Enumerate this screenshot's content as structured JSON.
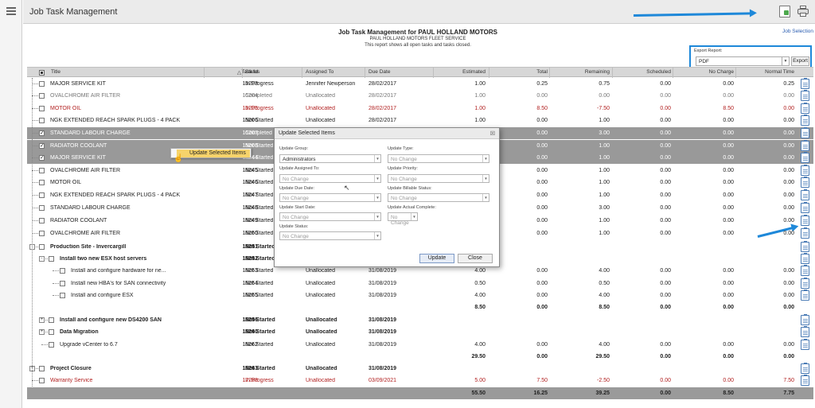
{
  "app": {
    "title": "Job Task Management",
    "job_selection": "Job Selection"
  },
  "report": {
    "title": "Job Task Management for PAUL HOLLAND MOTORS",
    "subtitle": "PAUL HOLLAND MOTORS FLEET SERVICE",
    "note": "This report shows all open tasks and tasks closed."
  },
  "export": {
    "label": "Export Report:",
    "format": "PDF",
    "button": "Export"
  },
  "columns": {
    "title": "Title",
    "task_id": "Task Id",
    "sort_indicator": "△",
    "status": "Status",
    "assigned_to": "Assigned To",
    "due_date": "Due Date",
    "estimated": "Estimated",
    "total": "Total",
    "remaining": "Remaining",
    "scheduled": "Scheduled",
    "no_charge": "No Charge",
    "normal_time": "Normal Time"
  },
  "rows": [
    {
      "title": "MAJOR SERVICE KIT",
      "task": "15203",
      "status": "In Progress",
      "assigned": "Jennifer Newperson",
      "due": "28/02/2017",
      "est": "1.00",
      "total": "0.25",
      "rem": "0.75",
      "sched": "0.00",
      "nc": "0.00",
      "nt": "0.25"
    },
    {
      "title": "OVALCHROME AIR FILTER",
      "task": "15204",
      "status": "Completed",
      "assigned": "Unallocated",
      "due": "28/02/2017",
      "est": "1.00",
      "total": "0.00",
      "rem": "0.00",
      "sched": "0.00",
      "nc": "0.00",
      "nt": "0.00"
    },
    {
      "title": "MOTOR OIL",
      "task": "15205",
      "status": "In Progress",
      "assigned": "Unallocated",
      "due": "28/02/2017",
      "est": "1.00",
      "total": "8.50",
      "rem": "-7.50",
      "sched": "0.00",
      "nc": "8.50",
      "nt": "0.00"
    },
    {
      "title": "NGK EXTENDED REACH SPARK PLUGS - 4 PACK",
      "task": "15206",
      "status": "Not Started",
      "assigned": "Unallocated",
      "due": "28/02/2017",
      "est": "1.00",
      "total": "0.00",
      "rem": "1.00",
      "sched": "0.00",
      "nc": "0.00",
      "nt": "0.00"
    },
    {
      "title": "STANDARD LABOUR CHARGE",
      "task": "15207",
      "status": "Completed",
      "assigned": "",
      "due": "",
      "est": "",
      "total": "0.00",
      "rem": "3.00",
      "sched": "0.00",
      "nc": "0.00",
      "nt": "0.00"
    },
    {
      "title": "RADIATOR COOLANT",
      "task": "15208",
      "status": "Not Started",
      "assigned": "",
      "due": "",
      "est": "",
      "total": "0.00",
      "rem": "1.00",
      "sched": "0.00",
      "nc": "0.00",
      "nt": "0.00"
    },
    {
      "title": "MAJOR SERVICE KIT",
      "task": "16244",
      "status": "Not Started",
      "assigned": "",
      "due": "",
      "est": "",
      "total": "0.00",
      "rem": "1.00",
      "sched": "0.00",
      "nc": "0.00",
      "nt": "0.00"
    },
    {
      "title": "OVALCHROME AIR FILTER",
      "task": "16245",
      "status": "Not Started",
      "assigned": "",
      "due": "",
      "est": "",
      "total": "0.00",
      "rem": "1.00",
      "sched": "0.00",
      "nc": "0.00",
      "nt": "0.00"
    },
    {
      "title": "MOTOR OIL",
      "task": "16246",
      "status": "Not Started",
      "assigned": "",
      "due": "",
      "est": "",
      "total": "0.00",
      "rem": "1.00",
      "sched": "0.00",
      "nc": "0.00",
      "nt": "0.00"
    },
    {
      "title": "NGK EXTENDED REACH SPARK PLUGS - 4 PACK",
      "task": "16247",
      "status": "Not Started",
      "assigned": "",
      "due": "",
      "est": "",
      "total": "0.00",
      "rem": "1.00",
      "sched": "0.00",
      "nc": "0.00",
      "nt": "0.00"
    },
    {
      "title": "STANDARD LABOUR CHARGE",
      "task": "16248",
      "status": "Not Started",
      "assigned": "",
      "due": "",
      "est": "",
      "total": "0.00",
      "rem": "3.00",
      "sched": "0.00",
      "nc": "0.00",
      "nt": "0.00"
    },
    {
      "title": "RADIATOR COOLANT",
      "task": "16249",
      "status": "Not Started",
      "assigned": "",
      "due": "",
      "est": "",
      "total": "0.00",
      "rem": "1.00",
      "sched": "0.00",
      "nc": "0.00",
      "nt": "0.00"
    },
    {
      "title": "OVALCHROME AIR FILTER",
      "task": "16250",
      "status": "Not Started",
      "assigned": "",
      "due": "",
      "est": "",
      "total": "0.00",
      "rem": "1.00",
      "sched": "0.00",
      "nc": "0.00",
      "nt": "0.00"
    },
    {
      "title": "Production Site - Invercargill",
      "task": "16251",
      "status": "Not Started",
      "assigned": "",
      "due": "",
      "est": "",
      "total": "",
      "rem": "",
      "sched": "",
      "nc": "",
      "nt": ""
    },
    {
      "title": "Install two new ESX host servers",
      "task": "16252",
      "status": "Not Started",
      "assigned": "",
      "due": "",
      "est": "",
      "total": "",
      "rem": "",
      "sched": "",
      "nc": "",
      "nt": ""
    },
    {
      "title": "Install and configure hardware for ne...",
      "task": "16253",
      "status": "Not Started",
      "assigned": "Unallocated",
      "due": "31/08/2019",
      "est": "4.00",
      "total": "0.00",
      "rem": "4.00",
      "sched": "0.00",
      "nc": "0.00",
      "nt": "0.00"
    },
    {
      "title": "Install new HBA's for SAN connectivity",
      "task": "16254",
      "status": "Not Started",
      "assigned": "Unallocated",
      "due": "31/08/2019",
      "est": "0.50",
      "total": "0.00",
      "rem": "0.50",
      "sched": "0.00",
      "nc": "0.00",
      "nt": "0.00"
    },
    {
      "title": "Install and configure ESX",
      "task": "16255",
      "status": "Not Started",
      "assigned": "Unallocated",
      "due": "31/08/2019",
      "est": "4.00",
      "total": "0.00",
      "rem": "4.00",
      "sched": "0.00",
      "nc": "0.00",
      "nt": "0.00"
    },
    {
      "title": "",
      "task": "",
      "status": "",
      "assigned": "",
      "due": "",
      "est": "8.50",
      "total": "0.00",
      "rem": "8.50",
      "sched": "0.00",
      "nc": "0.00",
      "nt": "0.00"
    },
    {
      "title": "Install and configure new DS4200 SAN",
      "task": "16256",
      "status": "Not Started",
      "assigned": "Unallocated",
      "due": "31/08/2019",
      "est": "",
      "total": "",
      "rem": "",
      "sched": "",
      "nc": "",
      "nt": ""
    },
    {
      "title": "Data Migration",
      "task": "16260",
      "status": "Not Started",
      "assigned": "Unallocated",
      "due": "31/08/2019",
      "est": "",
      "total": "",
      "rem": "",
      "sched": "",
      "nc": "",
      "nt": ""
    },
    {
      "title": "Upgrade vCenter to 6.7",
      "task": "16262",
      "status": "Not Started",
      "assigned": "Unallocated",
      "due": "31/08/2019",
      "est": "4.00",
      "total": "0.00",
      "rem": "4.00",
      "sched": "0.00",
      "nc": "0.00",
      "nt": "0.00"
    },
    {
      "title": "",
      "task": "",
      "status": "",
      "assigned": "",
      "due": "",
      "est": "29.50",
      "total": "0.00",
      "rem": "29.50",
      "sched": "0.00",
      "nc": "0.00",
      "nt": "0.00"
    },
    {
      "title": "Project Closure",
      "task": "16263",
      "status": "Not Started",
      "assigned": "Unallocated",
      "due": "31/08/2019",
      "est": "",
      "total": "",
      "rem": "",
      "sched": "",
      "nc": "",
      "nt": ""
    },
    {
      "title": "Warranty Service",
      "task": "17288",
      "status": "In Progress",
      "assigned": "Unallocated",
      "due": "03/09/2021",
      "est": "5.00",
      "total": "7.50",
      "rem": "-2.50",
      "sched": "0.00",
      "nc": "0.00",
      "nt": "7.50"
    },
    {
      "title": "",
      "task": "",
      "status": "",
      "assigned": "",
      "due": "",
      "est": "55.50",
      "total": "16.25",
      "rem": "39.25",
      "sched": "0.00",
      "nc": "8.50",
      "nt": "7.75"
    }
  ],
  "context_menu": {
    "item": "Update Selected Items"
  },
  "dialog": {
    "title": "Update Selected Items",
    "close_glyph": "☒",
    "update_group_label": "Update Group:",
    "update_group_value": "Administrators",
    "update_type_label": "Update Type:",
    "update_type_value": "No Change",
    "update_assigned_label": "Update Assigned To:",
    "update_assigned_value": "No Change",
    "update_priority_label": "Update Priority:",
    "update_priority_value": "No Change",
    "update_due_label": "Update Due Date:",
    "update_due_value": "No Change",
    "update_billable_label": "Update Billable Status:",
    "update_billable_value": "No Change",
    "update_start_label": "Update Start Date:",
    "update_start_value": "No Change",
    "update_actual_label": "Update Actual Complete:",
    "update_actual_value": "No Change",
    "update_status_label": "Update Status:",
    "update_status_value": "No Change",
    "update_button": "Update",
    "close_button": "Close"
  },
  "colors": {
    "accent_arrow": "#1e88d9",
    "selected_row": "#999999",
    "red_text": "#b22222",
    "context_highlight": "#f6d36b"
  },
  "icons": [
    "hamburger-icon",
    "export-icon",
    "print-icon",
    "clipboard-icon",
    "cursor-icon",
    "dropdown-icon"
  ]
}
